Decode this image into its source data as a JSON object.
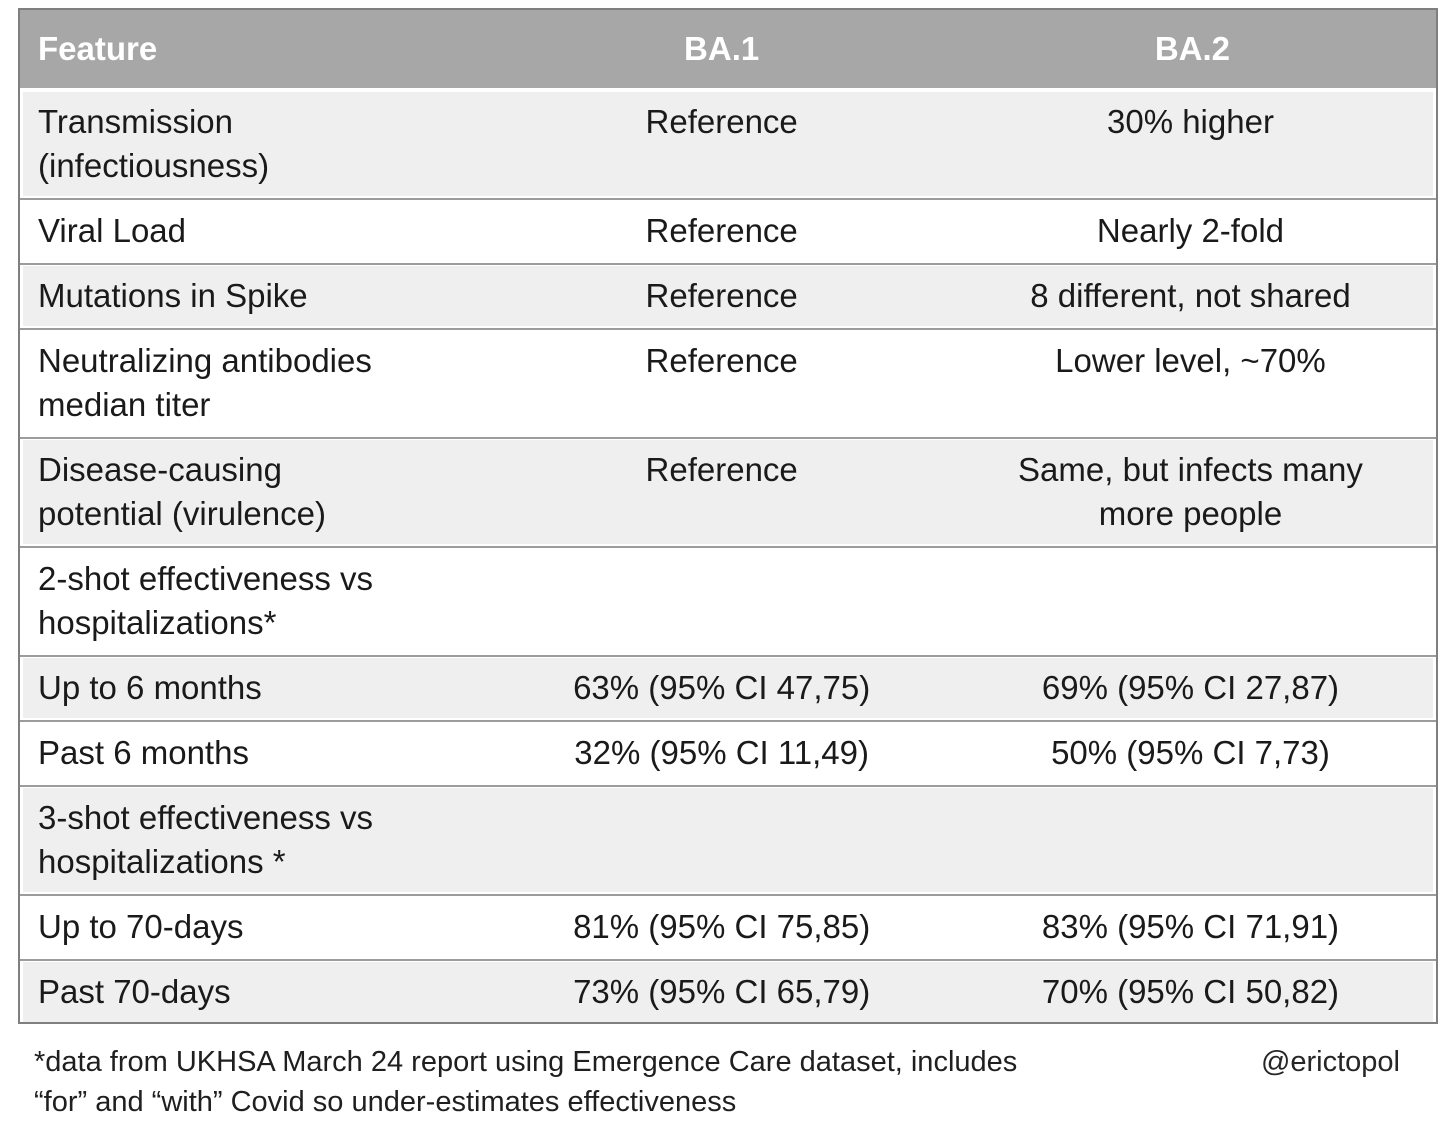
{
  "chart_data": {
    "type": "table",
    "columns": [
      "Feature",
      "BA.1",
      "BA.2"
    ],
    "rows": [
      [
        "Transmission (infectiousness)",
        "Reference",
        "30% higher"
      ],
      [
        "Viral Load",
        "Reference",
        "Nearly 2-fold"
      ],
      [
        "Mutations in Spike",
        "Reference",
        "8 different, not shared"
      ],
      [
        "Neutralizing antibodies median titer",
        "Reference",
        "Lower level, ~70%"
      ],
      [
        "Disease-causing potential (virulence)",
        "Reference",
        "Same, but infects many more people"
      ],
      [
        "2-shot effectiveness vs hospitalizations*",
        "",
        ""
      ],
      [
        "Up to 6 months",
        "63% (95% CI 47,75)",
        "69% (95% CI 27,87)"
      ],
      [
        "Past 6 months",
        "32% (95% CI 11,49)",
        "50% (95% CI 7,73)"
      ],
      [
        "3-shot effectiveness vs hospitalizations *",
        "",
        ""
      ],
      [
        "Up to 70-days",
        "81% (95% CI 75,85)",
        "83% (95% CI 71,91)"
      ],
      [
        "Past 70-days",
        "73% (95% CI 65,79)",
        "70% (95% CI 50,82)"
      ]
    ],
    "footnote": "*data from UKHSA March 24 report using Emergence Care dataset, includes “for” and “with” Covid so under-estimates effectiveness",
    "credit": "@erictopol",
    "legend_position": "none",
    "grid": "horizontal-separators"
  },
  "table": {
    "columns": [
      "Feature",
      "BA.1",
      "BA.2"
    ],
    "rows": [
      {
        "feature": [
          "Transmission",
          "(infectiousness)"
        ],
        "ba1": [
          "Reference"
        ],
        "ba2": [
          "30% higher"
        ]
      },
      {
        "feature": [
          "Viral Load"
        ],
        "ba1": [
          "Reference"
        ],
        "ba2": [
          "Nearly 2-fold"
        ]
      },
      {
        "feature": [
          "Mutations in Spike"
        ],
        "ba1": [
          "Reference"
        ],
        "ba2": [
          "8 different, not shared"
        ]
      },
      {
        "feature": [
          "Neutralizing antibodies",
          "median titer"
        ],
        "ba1": [
          "Reference"
        ],
        "ba2": [
          "Lower level, ~70%"
        ]
      },
      {
        "feature": [
          "Disease-causing",
          "potential (virulence)"
        ],
        "ba1": [
          "Reference"
        ],
        "ba2": [
          "Same, but infects many",
          "more people"
        ]
      },
      {
        "feature": [
          "2-shot effectiveness vs",
          "hospitalizations*"
        ],
        "ba1": [],
        "ba2": []
      },
      {
        "feature": [
          "Up to 6 months"
        ],
        "ba1": [
          "63% (95% CI 47,75)"
        ],
        "ba2": [
          "69% (95% CI 27,87)"
        ]
      },
      {
        "feature": [
          "Past 6 months"
        ],
        "ba1": [
          "32% (95% CI 11,49)"
        ],
        "ba2": [
          "50% (95% CI 7,73)"
        ]
      },
      {
        "feature": [
          "3-shot effectiveness vs",
          "hospitalizations *"
        ],
        "ba1": [],
        "ba2": []
      },
      {
        "feature": [
          "Up to 70-days"
        ],
        "ba1": [
          "81% (95% CI 75,85)"
        ],
        "ba2": [
          "83% (95% CI 71,91)"
        ]
      },
      {
        "feature": [
          "Past 70-days"
        ],
        "ba1": [
          "73% (95% CI 65,79)"
        ],
        "ba2": [
          "70% (95% CI 50,82)"
        ]
      }
    ]
  },
  "footnote": {
    "line1": "*data from UKHSA March 24 report using Emergence Care dataset, includes",
    "line2": "“for” and “with” Covid so under-estimates effectiveness",
    "credit": "@erictopol"
  },
  "colors": {
    "header_bg": "#a7a7a7",
    "header_text": "#ffffff",
    "row_shaded": "#efefef",
    "row_plain": "#ffffff",
    "outer_border": "#7f7f7f",
    "divider_line": "#9c9c9c",
    "body_text": "#1a1a1a",
    "page_bg": "#ffffff"
  }
}
